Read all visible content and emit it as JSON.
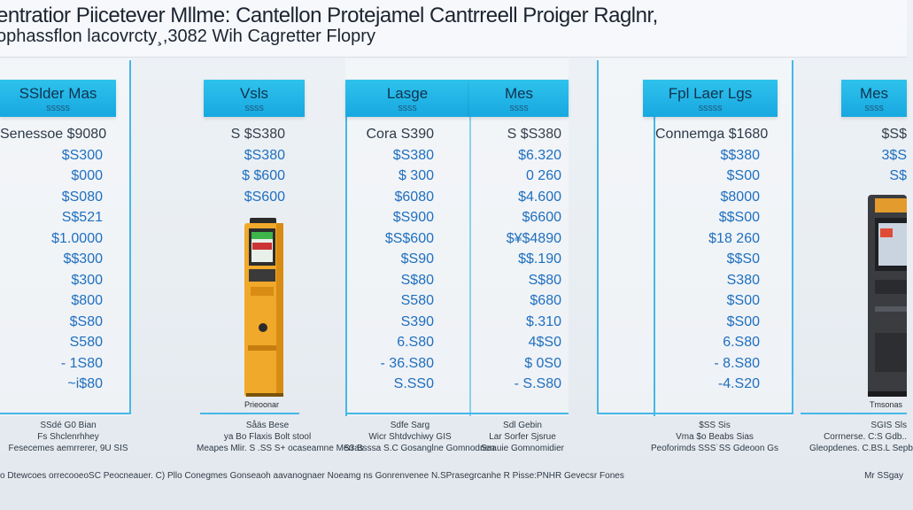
{
  "header": {
    "title": "entratior Piicetever Mllme: Cantellon Protejamel Cantrreell Proiger Raglnr,",
    "subtitle": "ophassflon lacovrcty¸,3082 Wih Cagretter Flopry"
  },
  "columns": [
    {
      "title": "SSlder Mas",
      "sub": "SSSSS",
      "prices": [
        "Senessoe $9080",
        "$S300",
        "$000",
        "$S080",
        "S$521",
        "$1.0000",
        "$$300",
        "$300",
        "$800",
        "$S80",
        "S580",
        "- 1S80",
        "~i$80"
      ]
    },
    {
      "title": "Vsls",
      "sub": "SSSS",
      "prices": [
        "S $S380",
        "$S380",
        "$ $600",
        "$S600"
      ]
    },
    {
      "title": "Lasge",
      "sub": "SSSS",
      "prices": [
        "Cora S390",
        "$S380",
        "$ 300",
        "$6080",
        "$S900",
        "$S$600",
        "$S90",
        "S$80",
        "S580",
        "S390",
        "6.S80",
        "- 36.S80",
        "S.SS0"
      ]
    },
    {
      "title": "Mes",
      "sub": "SSSS",
      "prices": [
        "S $S380",
        "$6.320",
        "0 260",
        "$4.600",
        "$6600",
        "$¥$4890",
        "$$.190",
        "S$80",
        "$680",
        "$.310",
        "4$S0",
        "$ 0S0",
        "- S.S80"
      ]
    },
    {
      "title": "Fpl Laer Lgs",
      "sub": "SSSSS",
      "prices": [
        "Connemga $1680",
        "$$380",
        "$S00",
        "$8000",
        "$$S00",
        "$18 260",
        "$$S0",
        "S380",
        "$S00",
        "$S00",
        "6.S80",
        "- 8.S80",
        "-4.S20"
      ]
    },
    {
      "title": "Mes",
      "sub": "SSSS",
      "prices": [
        "$S$",
        "3$S",
        "S$"
      ]
    }
  ],
  "notes": [
    {
      "lines": [
        "SSdé G0 Bian",
        "Fs  Shclenrhhey",
        "Fesecemes aemrrerer, 9U SIS"
      ]
    },
    {
      "lines": [
        "Såäs Bese",
        "ya  Bo  Flaxis  Bolt   stool",
        "Meapes  Mlir. S .SS  S+ ocaseamne  Merras"
      ]
    },
    {
      "lines": [
        "Sdfe Sarg",
        "Wicr  Shtdvchiwy  GIS",
        "S3  Bsssa  S.C Gosanglne  Gomnodnen"
      ]
    },
    {
      "lines": [
        "Sdl Gebin",
        "Lar  Sorfer  Sjsrue",
        "Saauie  Gomnomidier"
      ]
    },
    {
      "lines": [
        "$SS Sis",
        "Vma  $o  Beabs  Sias",
        "Peoforimds  SSS˙SS  Gdeoon Gs"
      ]
    },
    {
      "lines": [
        "SGIS Sls",
        "Corrnerse. C:S  Gdb..",
        "Gleopdenes.  C.BS.L  Sepb"
      ]
    }
  ],
  "machines": [
    {
      "label": "Prieoonar"
    },
    {
      "label": "Tmsonas"
    }
  ],
  "footer": {
    "text": "o Dtewcoes orrecooeoSC Peocneauer. C) Pllo Conegmes Gonseaoh aavanognaer Noeamg ns Gonrenvenee N.SPrasegrcanhe R Pisse:PNHR Gevecsr Fones",
    "right": "Mr SSgay"
  },
  "colors": {
    "accent": "#2fc2ec",
    "line": "#45b7e8",
    "price": "#1f6fbf"
  }
}
